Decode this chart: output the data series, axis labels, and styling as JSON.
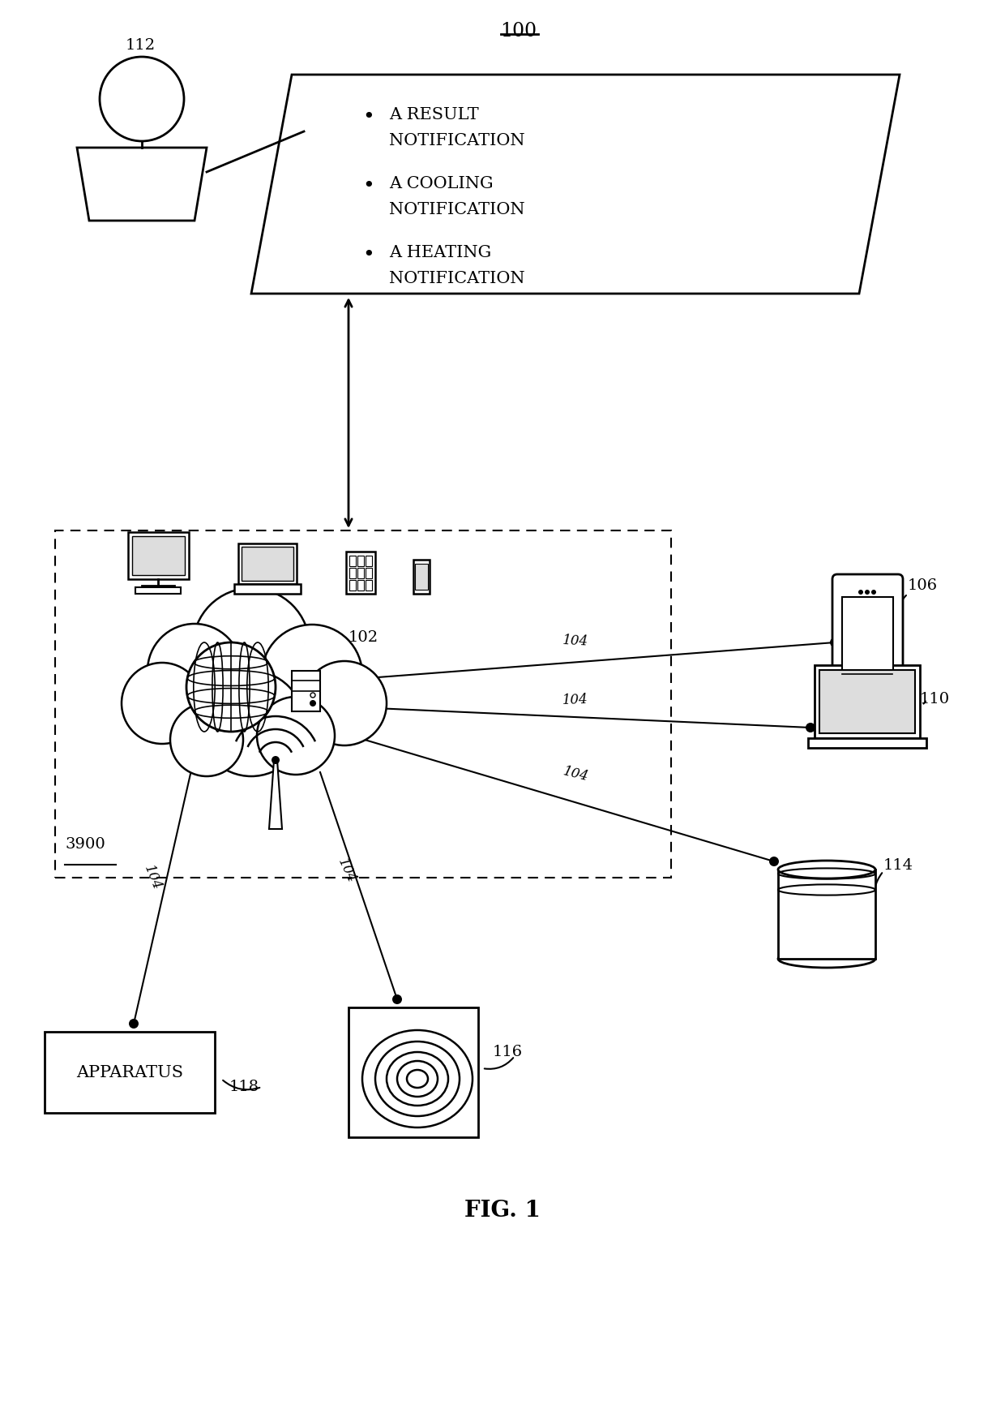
{
  "title": "100",
  "fig_label": "FIG. 1",
  "background_color": "#ffffff",
  "label_3900": "3900",
  "label_102": "102",
  "label_104": "104",
  "label_106": "106",
  "label_110": "110",
  "label_112": "112",
  "label_114": "114",
  "label_116": "116",
  "label_118": "118",
  "bullet_items": [
    "A RESULT\nNOTIFICATION",
    "A COOLING\nNOTIFICATION",
    "A HEATING\nNOTIFICATION"
  ],
  "apparatus_text": "APPARATUS"
}
